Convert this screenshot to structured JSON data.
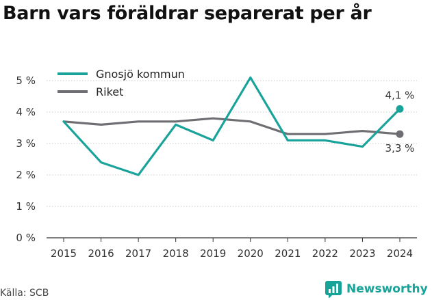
{
  "title": "Barn vars föräldrar separerat per år",
  "source": "Källa: SCB",
  "brand": {
    "name": "Newsworthy",
    "icon": "newsworthy-logo-icon",
    "color": "#17a398"
  },
  "chart_data": {
    "type": "line",
    "title": "Barn vars föräldrar separerat per år",
    "xlabel": "",
    "ylabel": "",
    "x": [
      2015,
      2016,
      2017,
      2018,
      2019,
      2020,
      2021,
      2022,
      2023,
      2024
    ],
    "ylim": [
      0,
      5
    ],
    "yticks": [
      0,
      1,
      2,
      3,
      4,
      5
    ],
    "ytick_labels": [
      "0 %",
      "1 %",
      "2 %",
      "3 %",
      "4 %",
      "5 %"
    ],
    "grid": "horizontal",
    "legend_position": "top-left",
    "series": [
      {
        "name": "Gnosjö kommun",
        "color": "#1aa39a",
        "values": [
          3.7,
          2.4,
          2.0,
          3.6,
          3.1,
          5.1,
          3.1,
          3.1,
          2.9,
          4.1
        ],
        "end_label": "4,1 %"
      },
      {
        "name": "Riket",
        "color": "#6f6f73",
        "values": [
          3.7,
          3.6,
          3.7,
          3.7,
          3.8,
          3.7,
          3.3,
          3.3,
          3.4,
          3.3
        ],
        "end_label": "3,3 %"
      }
    ]
  }
}
